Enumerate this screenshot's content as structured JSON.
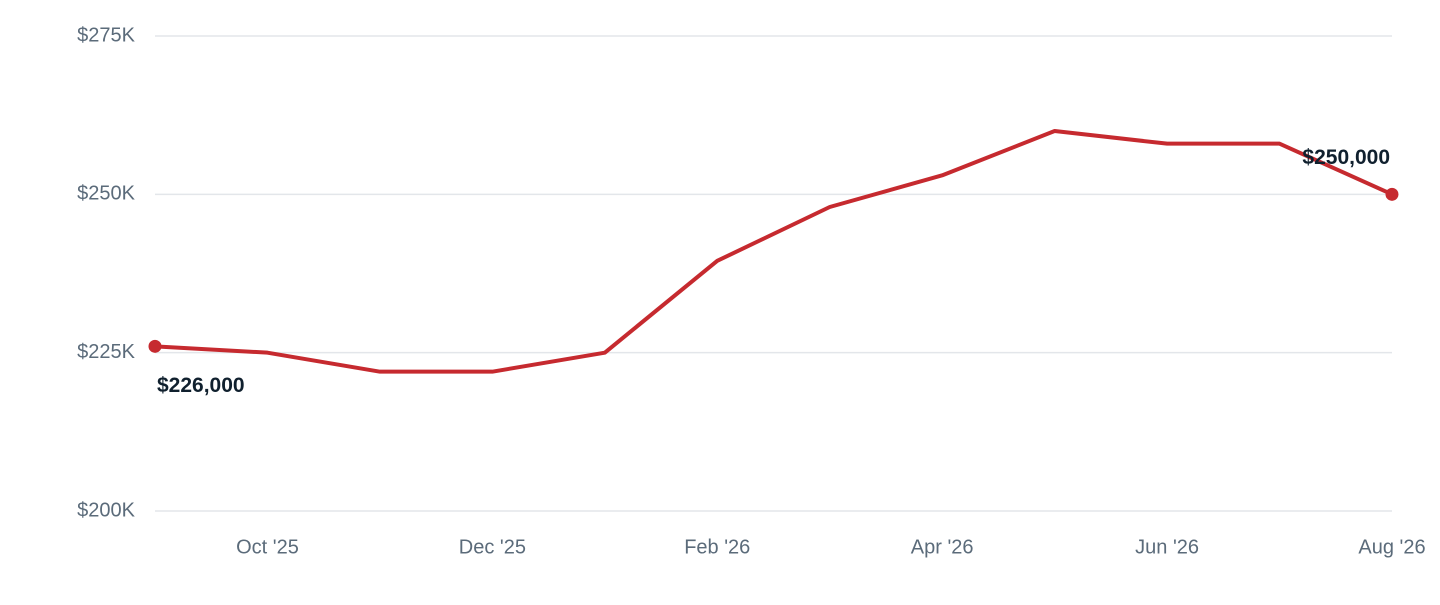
{
  "chart_data": {
    "type": "line",
    "categories": [
      null,
      "Oct '25",
      null,
      "Dec '25",
      null,
      "Feb '26",
      null,
      "Apr '26",
      null,
      "Jun '26",
      null,
      "Aug '26"
    ],
    "series": [
      {
        "color": "#c62a2f",
        "values": [
          226000,
          225000,
          222000,
          222000,
          225000,
          239500,
          248000,
          253000,
          260000,
          258000,
          258000,
          250000
        ],
        "value_labels": [
          "$226,000",
          null,
          null,
          null,
          null,
          null,
          null,
          null,
          null,
          null,
          null,
          "$250,000"
        ]
      }
    ],
    "ylim": [
      200000,
      275000
    ],
    "yticks": [
      {
        "value": 200000,
        "label": "$200K"
      },
      {
        "value": 225000,
        "label": "$225K"
      },
      {
        "value": 250000,
        "label": "$250K"
      },
      {
        "value": 275000,
        "label": "$275K"
      }
    ],
    "grid": true
  }
}
